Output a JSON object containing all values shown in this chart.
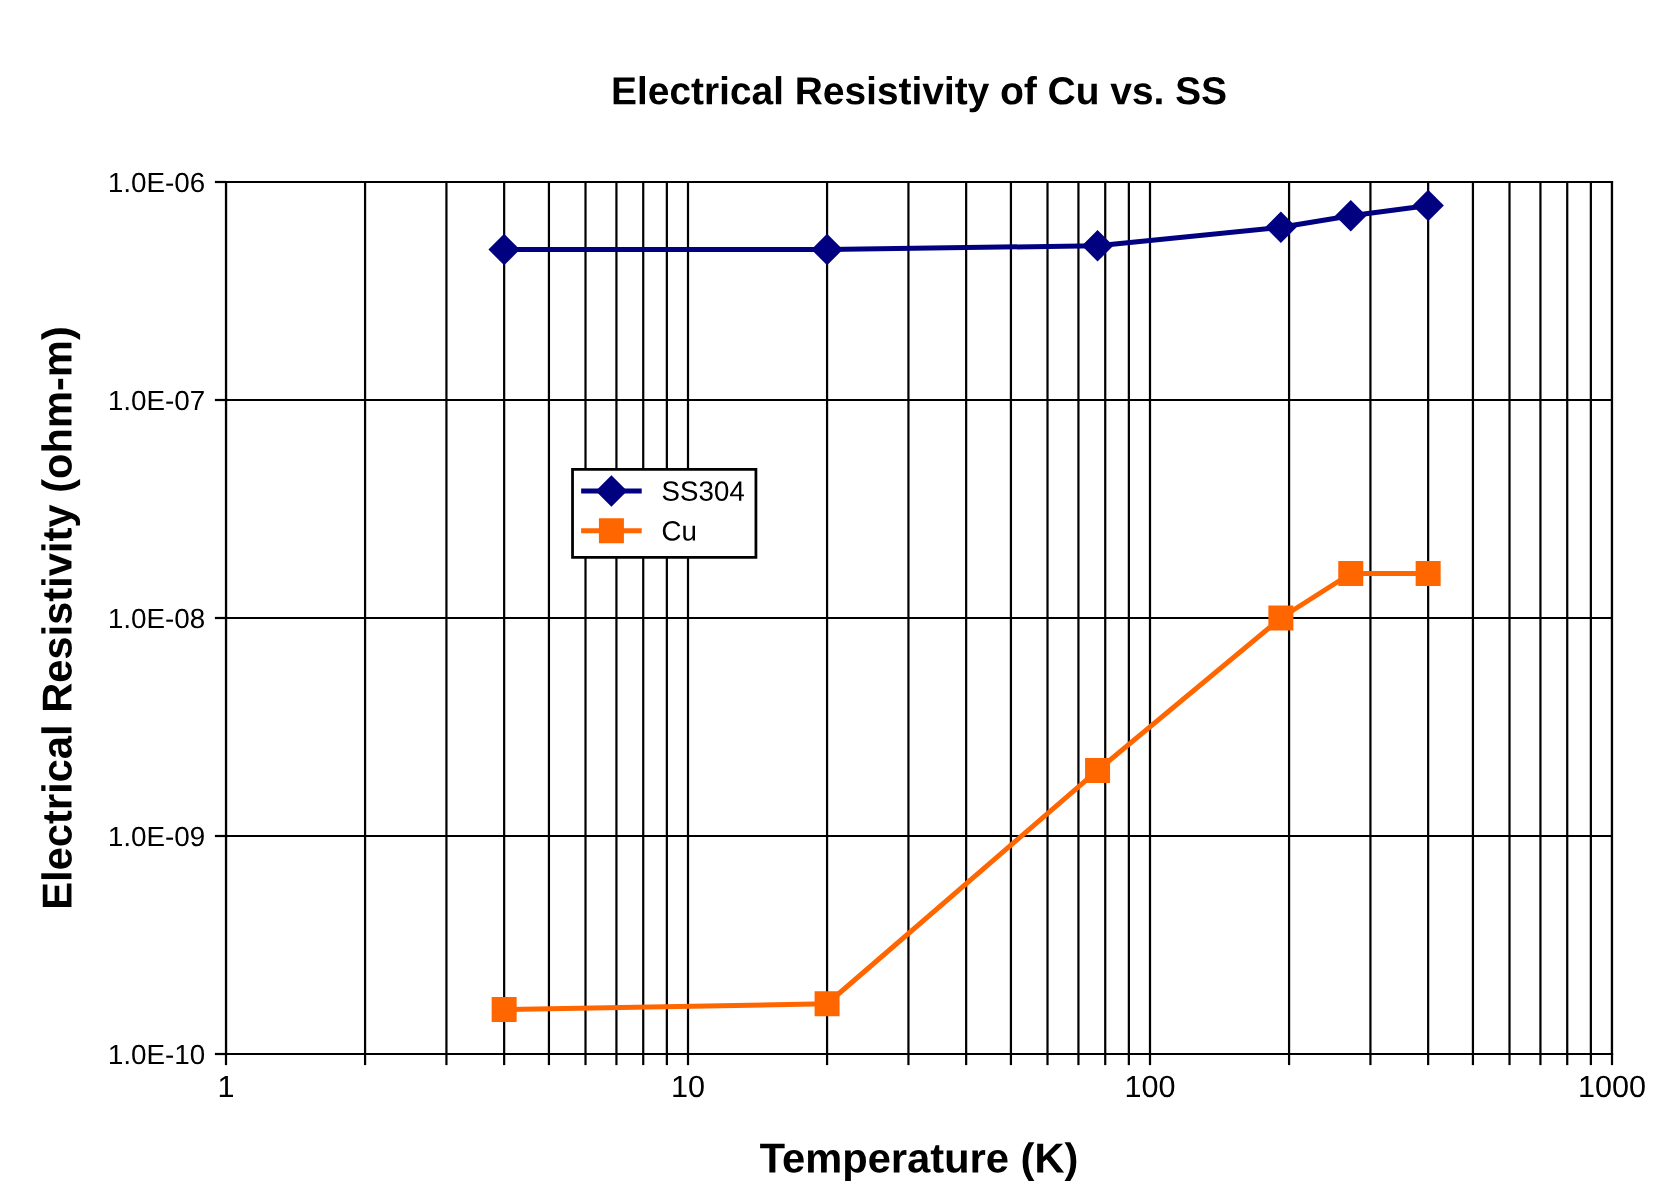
{
  "chart_data": {
    "type": "line",
    "title": "Electrical Resistivity of Cu vs. SS",
    "xlabel": "Temperature (K)",
    "ylabel": "Electrical Resistivity (ohm-m)",
    "log": "xy",
    "xlim": [
      1,
      1000
    ],
    "ylim": [
      1e-10,
      1e-06
    ],
    "xticks": [
      1,
      {
        "value": 2,
        "label": null
      },
      {
        "value": 3,
        "label": null
      },
      {
        "value": 4,
        "label": null
      },
      {
        "value": 5,
        "label": null
      },
      {
        "value": 6,
        "label": null
      },
      {
        "value": 7,
        "label": null
      },
      {
        "value": 8,
        "label": null
      },
      {
        "value": 9,
        "label": null
      },
      10,
      {
        "value": 20,
        "label": null
      },
      {
        "value": 30,
        "label": null
      },
      {
        "value": 40,
        "label": null
      },
      {
        "value": 50,
        "label": null
      },
      {
        "value": 60,
        "label": null
      },
      {
        "value": 70,
        "label": null
      },
      {
        "value": 80,
        "label": null
      },
      {
        "value": 90,
        "label": null
      },
      100,
      {
        "value": 200,
        "label": null
      },
      {
        "value": 300,
        "label": null
      },
      {
        "value": 400,
        "label": null
      },
      {
        "value": 500,
        "label": null
      },
      {
        "value": 600,
        "label": null
      },
      {
        "value": 700,
        "label": null
      },
      {
        "value": 800,
        "label": null
      },
      {
        "value": 900,
        "label": null
      },
      1000
    ],
    "yticks": [
      {
        "value": 1e-10,
        "label": "1.0E-10"
      },
      {
        "value": 1e-09,
        "label": "1.0E-09"
      },
      {
        "value": 1e-08,
        "label": "1.0E-08"
      },
      {
        "value": 1e-07,
        "label": "1.0E-07"
      },
      {
        "value": 1e-06,
        "label": "1.0E-06"
      }
    ],
    "grid": true,
    "legend": "center left",
    "line_style": "solid",
    "series": [
      {
        "name": "SS304",
        "color": "#000080",
        "marker": "diamond",
        "x": [
          4,
          20,
          77,
          192,
          272,
          400
        ],
        "values": [
          4.9e-07,
          4.9e-07,
          5.1e-07,
          6.2e-07,
          7e-07,
          7.8e-07
        ]
      },
      {
        "name": "Cu",
        "color": "#ff6600",
        "marker": "square",
        "x": [
          4,
          20,
          77,
          192,
          272,
          400
        ],
        "values": [
          1.6e-10,
          1.7e-10,
          2e-09,
          1e-08,
          1.6e-08,
          1.6e-08
        ]
      }
    ]
  }
}
